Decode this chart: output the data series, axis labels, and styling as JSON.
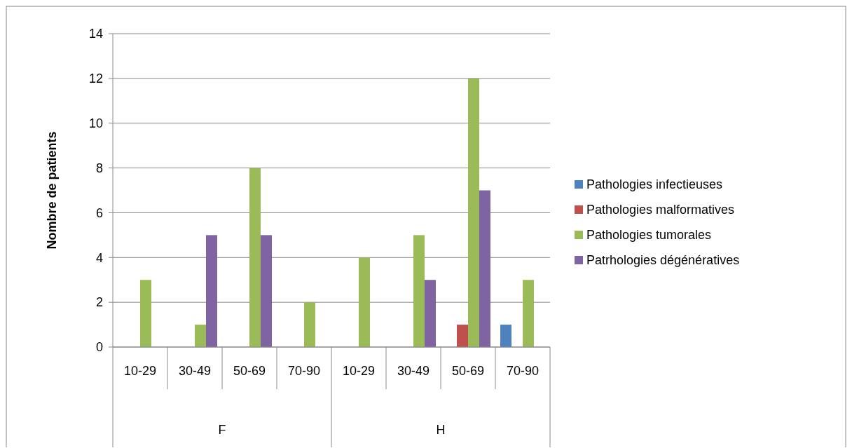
{
  "chart_data": {
    "type": "bar",
    "ylabel": "Nombre de patients",
    "categories": [
      "10-29",
      "30-49",
      "50-69",
      "70-90",
      "10-29",
      "30-49",
      "50-69",
      "70-90"
    ],
    "annotations": [
      "F",
      "H"
    ],
    "series": [
      {
        "name": "Pathologies infectieuses",
        "color": "#4f81bd",
        "values": [
          null,
          null,
          null,
          null,
          null,
          null,
          null,
          1
        ]
      },
      {
        "name": "Pathologies malformatives",
        "color": "#c0504d",
        "values": [
          null,
          null,
          null,
          null,
          null,
          null,
          1,
          null
        ]
      },
      {
        "name": "Pathologies tumorales",
        "color": "#9bbb59",
        "values": [
          3,
          1,
          8,
          2,
          4,
          5,
          12,
          3
        ]
      },
      {
        "name": "Patrhologies dégénératives",
        "color": "#8064a2",
        "values": [
          null,
          5,
          5,
          null,
          null,
          3,
          7,
          null
        ]
      }
    ],
    "ylim": [
      0,
      14
    ],
    "yticks": [
      0,
      2,
      4,
      6,
      8,
      10,
      12,
      14
    ],
    "grid": "y",
    "legend": "right"
  }
}
